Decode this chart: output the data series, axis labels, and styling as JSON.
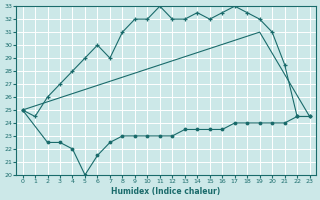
{
  "xlabel": "Humidex (Indice chaleur)",
  "bg_color": "#cce8e8",
  "grid_color": "#ffffff",
  "line_color": "#1a6b6b",
  "xlim": [
    -0.5,
    23.5
  ],
  "ylim": [
    20,
    33
  ],
  "xticks": [
    0,
    1,
    2,
    3,
    4,
    5,
    6,
    7,
    8,
    9,
    10,
    11,
    12,
    13,
    14,
    15,
    16,
    17,
    18,
    19,
    20,
    21,
    22,
    23
  ],
  "yticks": [
    20,
    21,
    22,
    23,
    24,
    25,
    26,
    27,
    28,
    29,
    30,
    31,
    32,
    33
  ],
  "line1_x": [
    0,
    1,
    2,
    3,
    4,
    5,
    6,
    7,
    8,
    9,
    10,
    11,
    12,
    13,
    14,
    15,
    16,
    17,
    18,
    19,
    20,
    21,
    22,
    23
  ],
  "line1_y": [
    25,
    24.5,
    26,
    27,
    28,
    29,
    30,
    29,
    31,
    32,
    32,
    33,
    32,
    32,
    32.5,
    32,
    32.5,
    33,
    32.5,
    32,
    31,
    28.5,
    24.5,
    24.5
  ],
  "line2_x": [
    0,
    2,
    3,
    4,
    5,
    6,
    7,
    8,
    9,
    10,
    11,
    12,
    13,
    14,
    15,
    16,
    17,
    18,
    19,
    20,
    21,
    22,
    23
  ],
  "line2_y": [
    25,
    22.5,
    22.5,
    22,
    20,
    21.5,
    22.5,
    23,
    23,
    23,
    23,
    23,
    23.5,
    23.5,
    23.5,
    23.5,
    24,
    24,
    24,
    24,
    24,
    24.5,
    24.5
  ],
  "line3_x": [
    0,
    19,
    23
  ],
  "line3_y": [
    25,
    31,
    24.5
  ]
}
